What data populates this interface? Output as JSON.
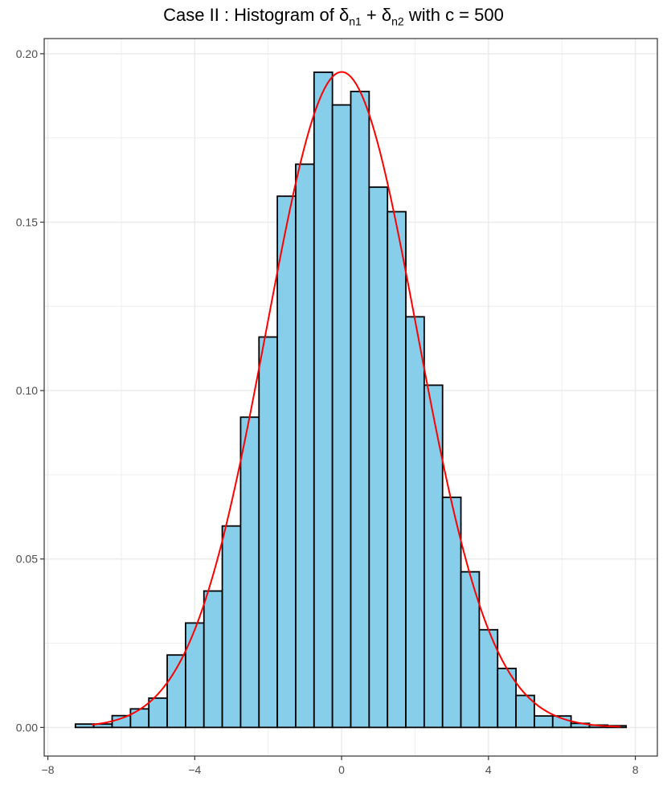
{
  "chart_data": {
    "type": "bar",
    "subtype": "histogram",
    "title": {
      "prefix": "Case II : Histogram of ",
      "sym1": "δ",
      "sub1": "n1",
      "plus": " + ",
      "sym2": "δ",
      "sub2": "n2",
      "suffix": " with c = 500"
    },
    "xlabel": "",
    "ylabel": "",
    "xlim": [
      -8.1,
      8.6
    ],
    "ylim": [
      -0.0085,
      0.2045
    ],
    "x_ticks": [
      -8,
      -4,
      0,
      4,
      8
    ],
    "x_tick_labels": [
      "−8",
      "−4",
      "0",
      "4",
      "8"
    ],
    "y_ticks": [
      0.0,
      0.05,
      0.1,
      0.15,
      0.2
    ],
    "y_tick_labels": [
      "0.00",
      "0.05",
      "0.10",
      "0.15",
      "0.20"
    ],
    "grid": true,
    "bin_width": 0.5,
    "bins": [
      {
        "x0": -7.25,
        "x1": -6.75,
        "density": 0.001
      },
      {
        "x0": -6.75,
        "x1": -6.25,
        "density": 0.001
      },
      {
        "x0": -6.25,
        "x1": -5.75,
        "density": 0.0035
      },
      {
        "x0": -5.75,
        "x1": -5.25,
        "density": 0.0055
      },
      {
        "x0": -5.25,
        "x1": -4.75,
        "density": 0.0087
      },
      {
        "x0": -4.75,
        "x1": -4.25,
        "density": 0.0215
      },
      {
        "x0": -4.25,
        "x1": -3.75,
        "density": 0.031
      },
      {
        "x0": -3.75,
        "x1": -3.25,
        "density": 0.0405
      },
      {
        "x0": -3.25,
        "x1": -2.75,
        "density": 0.0598
      },
      {
        "x0": -2.75,
        "x1": -2.25,
        "density": 0.0921
      },
      {
        "x0": -2.25,
        "x1": -1.75,
        "density": 0.1159
      },
      {
        "x0": -1.75,
        "x1": -1.25,
        "density": 0.1577
      },
      {
        "x0": -1.25,
        "x1": -0.75,
        "density": 0.1672
      },
      {
        "x0": -0.75,
        "x1": -0.25,
        "density": 0.1945
      },
      {
        "x0": -0.25,
        "x1": 0.25,
        "density": 0.1848
      },
      {
        "x0": 0.25,
        "x1": 0.75,
        "density": 0.1888
      },
      {
        "x0": 0.75,
        "x1": 1.25,
        "density": 0.1604
      },
      {
        "x0": 1.25,
        "x1": 1.75,
        "density": 0.1531
      },
      {
        "x0": 1.75,
        "x1": 2.25,
        "density": 0.1219
      },
      {
        "x0": 2.25,
        "x1": 2.75,
        "density": 0.1016
      },
      {
        "x0": 2.75,
        "x1": 3.25,
        "density": 0.0683
      },
      {
        "x0": 3.25,
        "x1": 3.75,
        "density": 0.0462
      },
      {
        "x0": 3.75,
        "x1": 4.25,
        "density": 0.029
      },
      {
        "x0": 4.25,
        "x1": 4.75,
        "density": 0.0175
      },
      {
        "x0": 4.75,
        "x1": 5.25,
        "density": 0.0095
      },
      {
        "x0": 5.25,
        "x1": 5.75,
        "density": 0.0034
      },
      {
        "x0": 5.75,
        "x1": 6.25,
        "density": 0.0034
      },
      {
        "x0": 6.25,
        "x1": 6.75,
        "density": 0.0012
      },
      {
        "x0": 6.75,
        "x1": 7.25,
        "density": 0.0007
      },
      {
        "x0": 7.25,
        "x1": 7.75,
        "density": 0.0005
      }
    ],
    "density_curve": {
      "distribution": "normal",
      "mean": 0.0,
      "sd": 2.05,
      "x_range": [
        -6.8,
        7.6
      ]
    },
    "colors": {
      "bar_fill": "#87CEEB",
      "bar_stroke": "#000000",
      "curve": "#FF0000",
      "grid": "#EBEBEB",
      "panel_border": "#333333"
    }
  }
}
